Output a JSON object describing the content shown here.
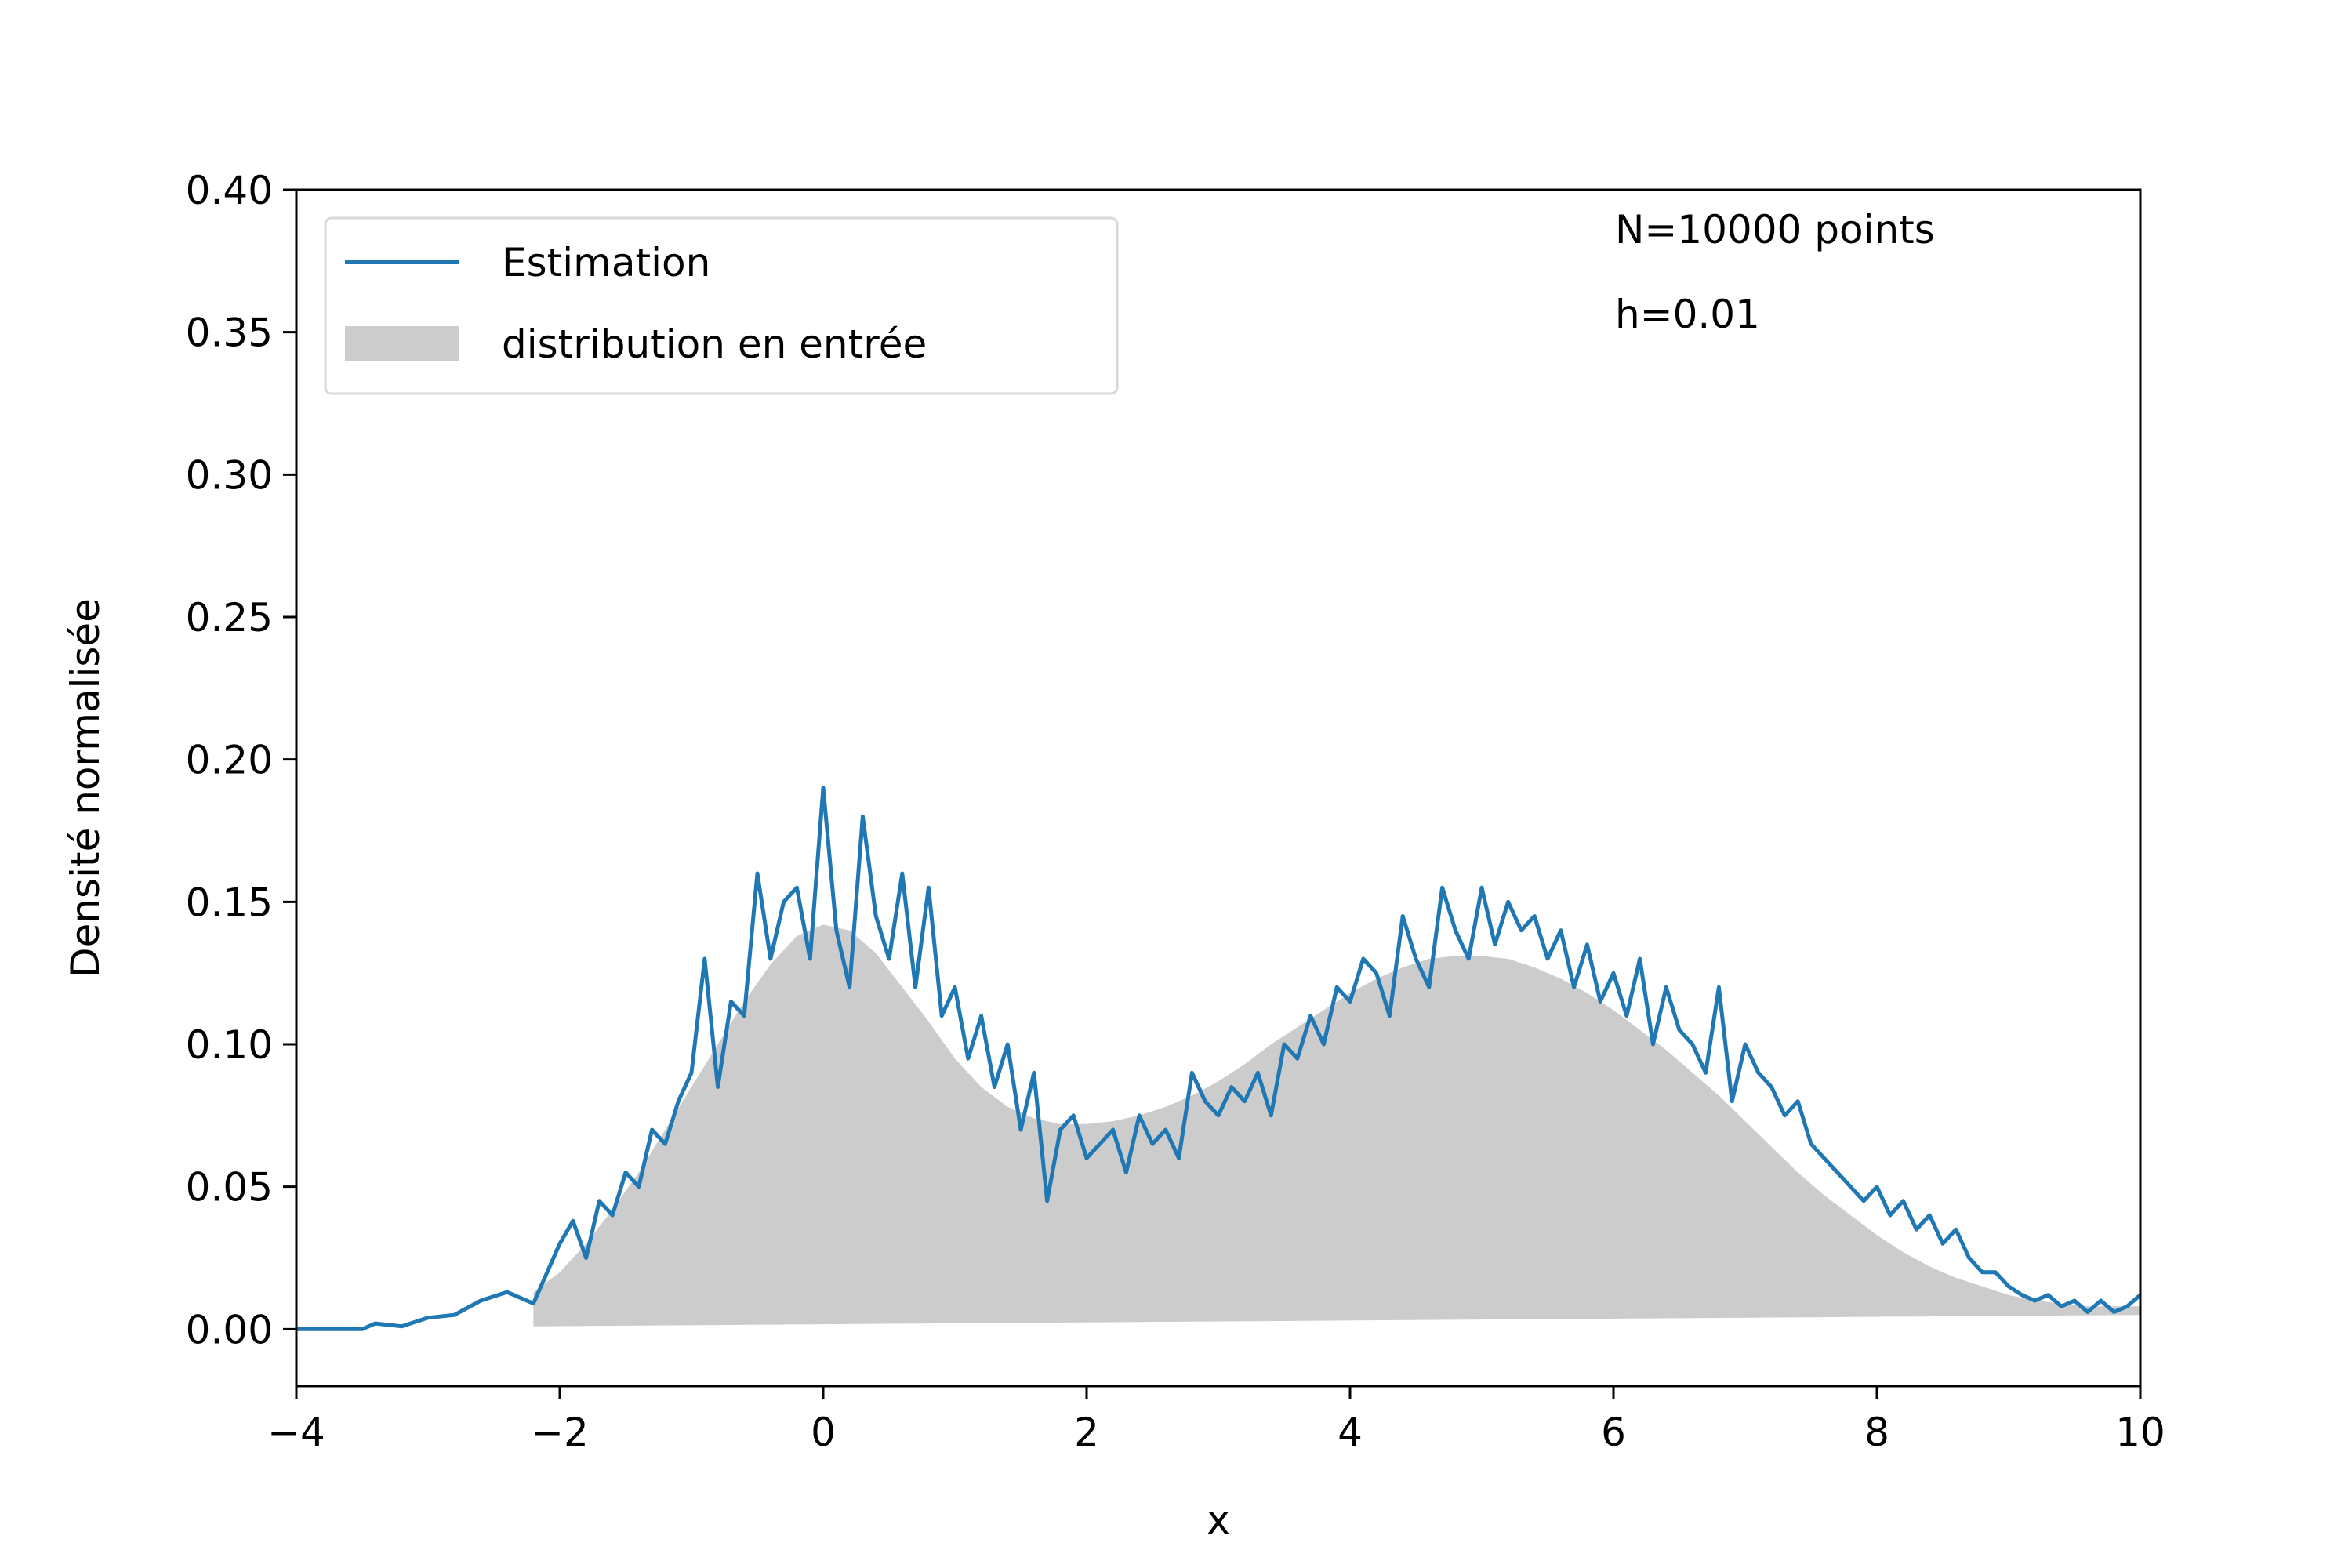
{
  "chart_data": {
    "type": "line",
    "title": "",
    "xlabel": "x",
    "ylabel": "Densité normalisée",
    "xlim": [
      -4,
      10
    ],
    "ylim": [
      -0.02,
      0.4
    ],
    "x_ticks": [
      -4,
      -2,
      0,
      2,
      4,
      6,
      8,
      10
    ],
    "x_tick_labels": [
      "−4",
      "−2",
      "0",
      "2",
      "4",
      "6",
      "8",
      "10"
    ],
    "y_ticks": [
      0.0,
      0.05,
      0.1,
      0.15,
      0.2,
      0.25,
      0.3,
      0.35,
      0.4
    ],
    "y_tick_labels": [
      "0.00",
      "0.05",
      "0.10",
      "0.15",
      "0.20",
      "0.25",
      "0.30",
      "0.35",
      "0.40"
    ],
    "grid": false,
    "legend": {
      "placement": "top-left",
      "entries": [
        "Estimation",
        "distribution en entrée"
      ]
    },
    "annotations": [
      "N=10000 points",
      "h=0.01"
    ],
    "series": [
      {
        "name": "Estimation",
        "kind": "line",
        "color": "#1f77b4",
        "x": [
          -4.0,
          -3.5,
          -3.4,
          -3.2,
          -3.0,
          -2.8,
          -2.6,
          -2.4,
          -2.2,
          -2.0,
          -1.9,
          -1.8,
          -1.7,
          -1.6,
          -1.5,
          -1.4,
          -1.3,
          -1.2,
          -1.1,
          -1.0,
          -0.9,
          -0.8,
          -0.7,
          -0.6,
          -0.5,
          -0.4,
          -0.3,
          -0.2,
          -0.1,
          0.0,
          0.1,
          0.2,
          0.3,
          0.4,
          0.5,
          0.6,
          0.7,
          0.8,
          0.9,
          1.0,
          1.1,
          1.2,
          1.3,
          1.4,
          1.5,
          1.6,
          1.7,
          1.8,
          1.9,
          2.0,
          2.1,
          2.2,
          2.3,
          2.4,
          2.5,
          2.6,
          2.7,
          2.8,
          2.9,
          3.0,
          3.1,
          3.2,
          3.3,
          3.4,
          3.5,
          3.6,
          3.7,
          3.8,
          3.9,
          4.0,
          4.1,
          4.2,
          4.3,
          4.4,
          4.5,
          4.6,
          4.7,
          4.8,
          4.9,
          5.0,
          5.1,
          5.2,
          5.3,
          5.4,
          5.5,
          5.6,
          5.7,
          5.8,
          5.9,
          6.0,
          6.1,
          6.2,
          6.3,
          6.4,
          6.5,
          6.6,
          6.7,
          6.8,
          6.9,
          7.0,
          7.1,
          7.2,
          7.3,
          7.4,
          7.5,
          7.6,
          7.7,
          7.8,
          7.9,
          8.0,
          8.1,
          8.2,
          8.3,
          8.4,
          8.5,
          8.6,
          8.7,
          8.8,
          8.9,
          9.0,
          9.1,
          9.2,
          9.3,
          9.4,
          9.5,
          9.6,
          9.7,
          9.8,
          9.9,
          10.0
        ],
        "y": [
          0.0,
          0.0,
          0.002,
          0.001,
          0.004,
          0.005,
          0.01,
          0.013,
          0.009,
          0.03,
          0.038,
          0.025,
          0.045,
          0.04,
          0.055,
          0.05,
          0.07,
          0.065,
          0.08,
          0.09,
          0.13,
          0.085,
          0.115,
          0.11,
          0.16,
          0.13,
          0.15,
          0.155,
          0.13,
          0.19,
          0.14,
          0.12,
          0.18,
          0.145,
          0.13,
          0.16,
          0.12,
          0.155,
          0.11,
          0.12,
          0.095,
          0.11,
          0.085,
          0.1,
          0.07,
          0.09,
          0.045,
          0.07,
          0.075,
          0.06,
          0.065,
          0.07,
          0.055,
          0.075,
          0.065,
          0.07,
          0.06,
          0.09,
          0.08,
          0.075,
          0.085,
          0.08,
          0.09,
          0.075,
          0.1,
          0.095,
          0.11,
          0.1,
          0.12,
          0.115,
          0.13,
          0.125,
          0.11,
          0.145,
          0.13,
          0.12,
          0.155,
          0.14,
          0.13,
          0.155,
          0.135,
          0.15,
          0.14,
          0.145,
          0.13,
          0.14,
          0.12,
          0.135,
          0.115,
          0.125,
          0.11,
          0.13,
          0.1,
          0.12,
          0.105,
          0.1,
          0.09,
          0.12,
          0.08,
          0.1,
          0.09,
          0.085,
          0.075,
          0.08,
          0.065,
          0.06,
          0.055,
          0.05,
          0.045,
          0.05,
          0.04,
          0.045,
          0.035,
          0.04,
          0.03,
          0.035,
          0.025,
          0.02,
          0.02,
          0.015,
          0.012,
          0.01,
          0.012,
          0.008,
          0.01,
          0.006,
          0.01,
          0.006,
          0.008,
          0.012
        ]
      },
      {
        "name": "distribution en entrée",
        "kind": "area",
        "color": "#cccccc",
        "x": [
          -2.2,
          -2.0,
          -1.8,
          -1.6,
          -1.4,
          -1.2,
          -1.0,
          -0.8,
          -0.6,
          -0.4,
          -0.2,
          0.0,
          0.2,
          0.4,
          0.6,
          0.8,
          1.0,
          1.2,
          1.4,
          1.6,
          1.8,
          2.0,
          2.2,
          2.4,
          2.6,
          2.8,
          3.0,
          3.2,
          3.4,
          3.6,
          3.8,
          4.0,
          4.2,
          4.4,
          4.6,
          4.8,
          5.0,
          5.2,
          5.4,
          5.6,
          5.8,
          6.0,
          6.2,
          6.4,
          6.6,
          6.8,
          7.0,
          7.2,
          7.4,
          7.6,
          7.8,
          8.0,
          8.2,
          8.4,
          8.6,
          8.8,
          9.0,
          9.2,
          9.4,
          9.6,
          9.8,
          10.0
        ],
        "y": [
          0.013,
          0.02,
          0.03,
          0.042,
          0.055,
          0.07,
          0.085,
          0.1,
          0.115,
          0.128,
          0.138,
          0.142,
          0.14,
          0.132,
          0.12,
          0.108,
          0.095,
          0.085,
          0.078,
          0.074,
          0.072,
          0.072,
          0.073,
          0.075,
          0.078,
          0.082,
          0.087,
          0.093,
          0.1,
          0.106,
          0.112,
          0.118,
          0.123,
          0.127,
          0.13,
          0.131,
          0.131,
          0.13,
          0.127,
          0.123,
          0.118,
          0.112,
          0.105,
          0.098,
          0.09,
          0.082,
          0.073,
          0.064,
          0.055,
          0.047,
          0.04,
          0.033,
          0.027,
          0.022,
          0.018,
          0.015,
          0.012,
          0.01,
          0.009,
          0.008,
          0.008,
          0.008
        ],
        "baseline_x": [
          -2.2,
          10.0
        ],
        "baseline_y": [
          0.001,
          0.005
        ]
      }
    ]
  }
}
